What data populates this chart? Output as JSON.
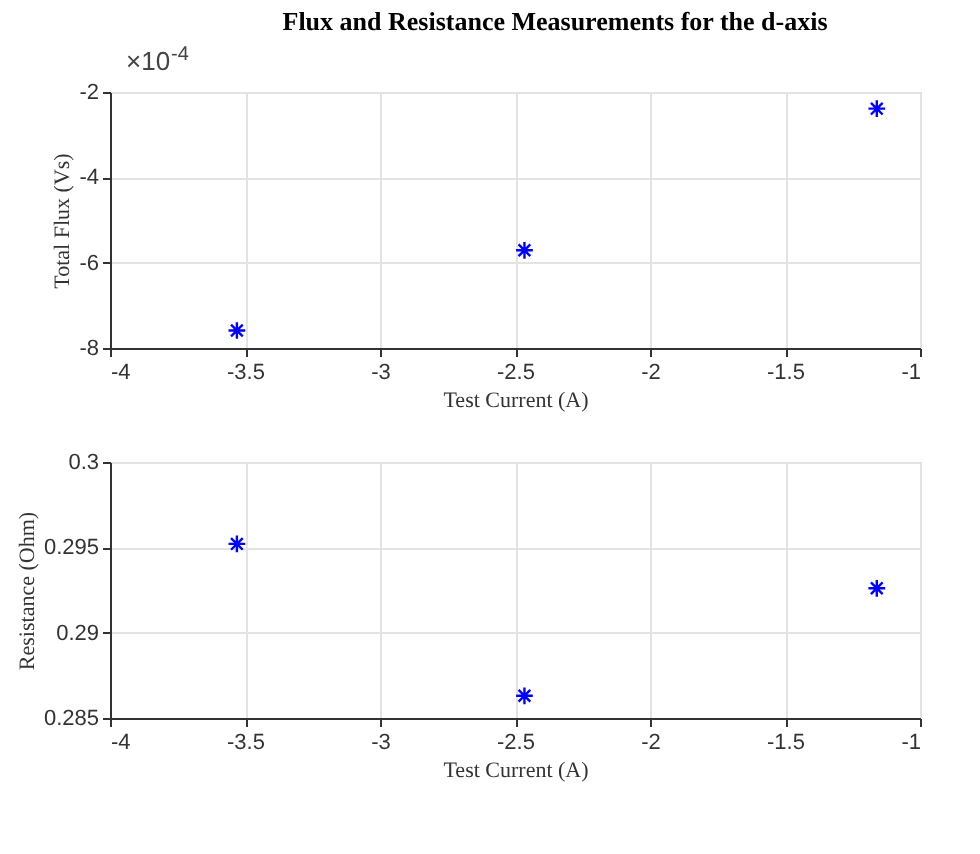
{
  "chart_data": [
    {
      "type": "scatter",
      "title": "Flux and Resistance Measurements for the d-axis",
      "annotations": [
        "×10$^{-4}$"
      ],
      "xlabel": "Test Current (A)",
      "ylabel": "Total Flux (Vs)",
      "x": [
        -3.53,
        -2.465,
        -1.16
      ],
      "series": [
        {
          "color": "#0000ff",
          "values": [
            -7.59,
            -5.71,
            -2.39
          ]
        }
      ],
      "xlim": [
        -4,
        -1
      ],
      "xticks": [
        -4,
        -3.5,
        -3,
        -2.5,
        -2,
        -1.5,
        -1
      ],
      "ylim": [
        -8,
        -2
      ],
      "yticks": [
        -8,
        -6,
        -4,
        -2
      ],
      "grid": true,
      "marker": "cross"
    },
    {
      "type": "scatter",
      "xlabel": "Test Current (A)",
      "ylabel": "Resistance (Ohm)",
      "x": [
        -3.53,
        -2.465,
        -1.16
      ],
      "series": [
        {
          "color": "#0000ff",
          "values": [
            0.2952,
            0.2863,
            0.2926
          ]
        }
      ],
      "xlim": [
        -4,
        -1
      ],
      "xticks": [
        -4,
        -3.5,
        -3,
        -2.5,
        -2,
        -1.5,
        -1
      ],
      "ylim": [
        0.285,
        0.3
      ],
      "yticks": [
        0.285,
        0.29,
        0.295,
        0.3
      ],
      "grid": true,
      "marker": "cross"
    }
  ]
}
